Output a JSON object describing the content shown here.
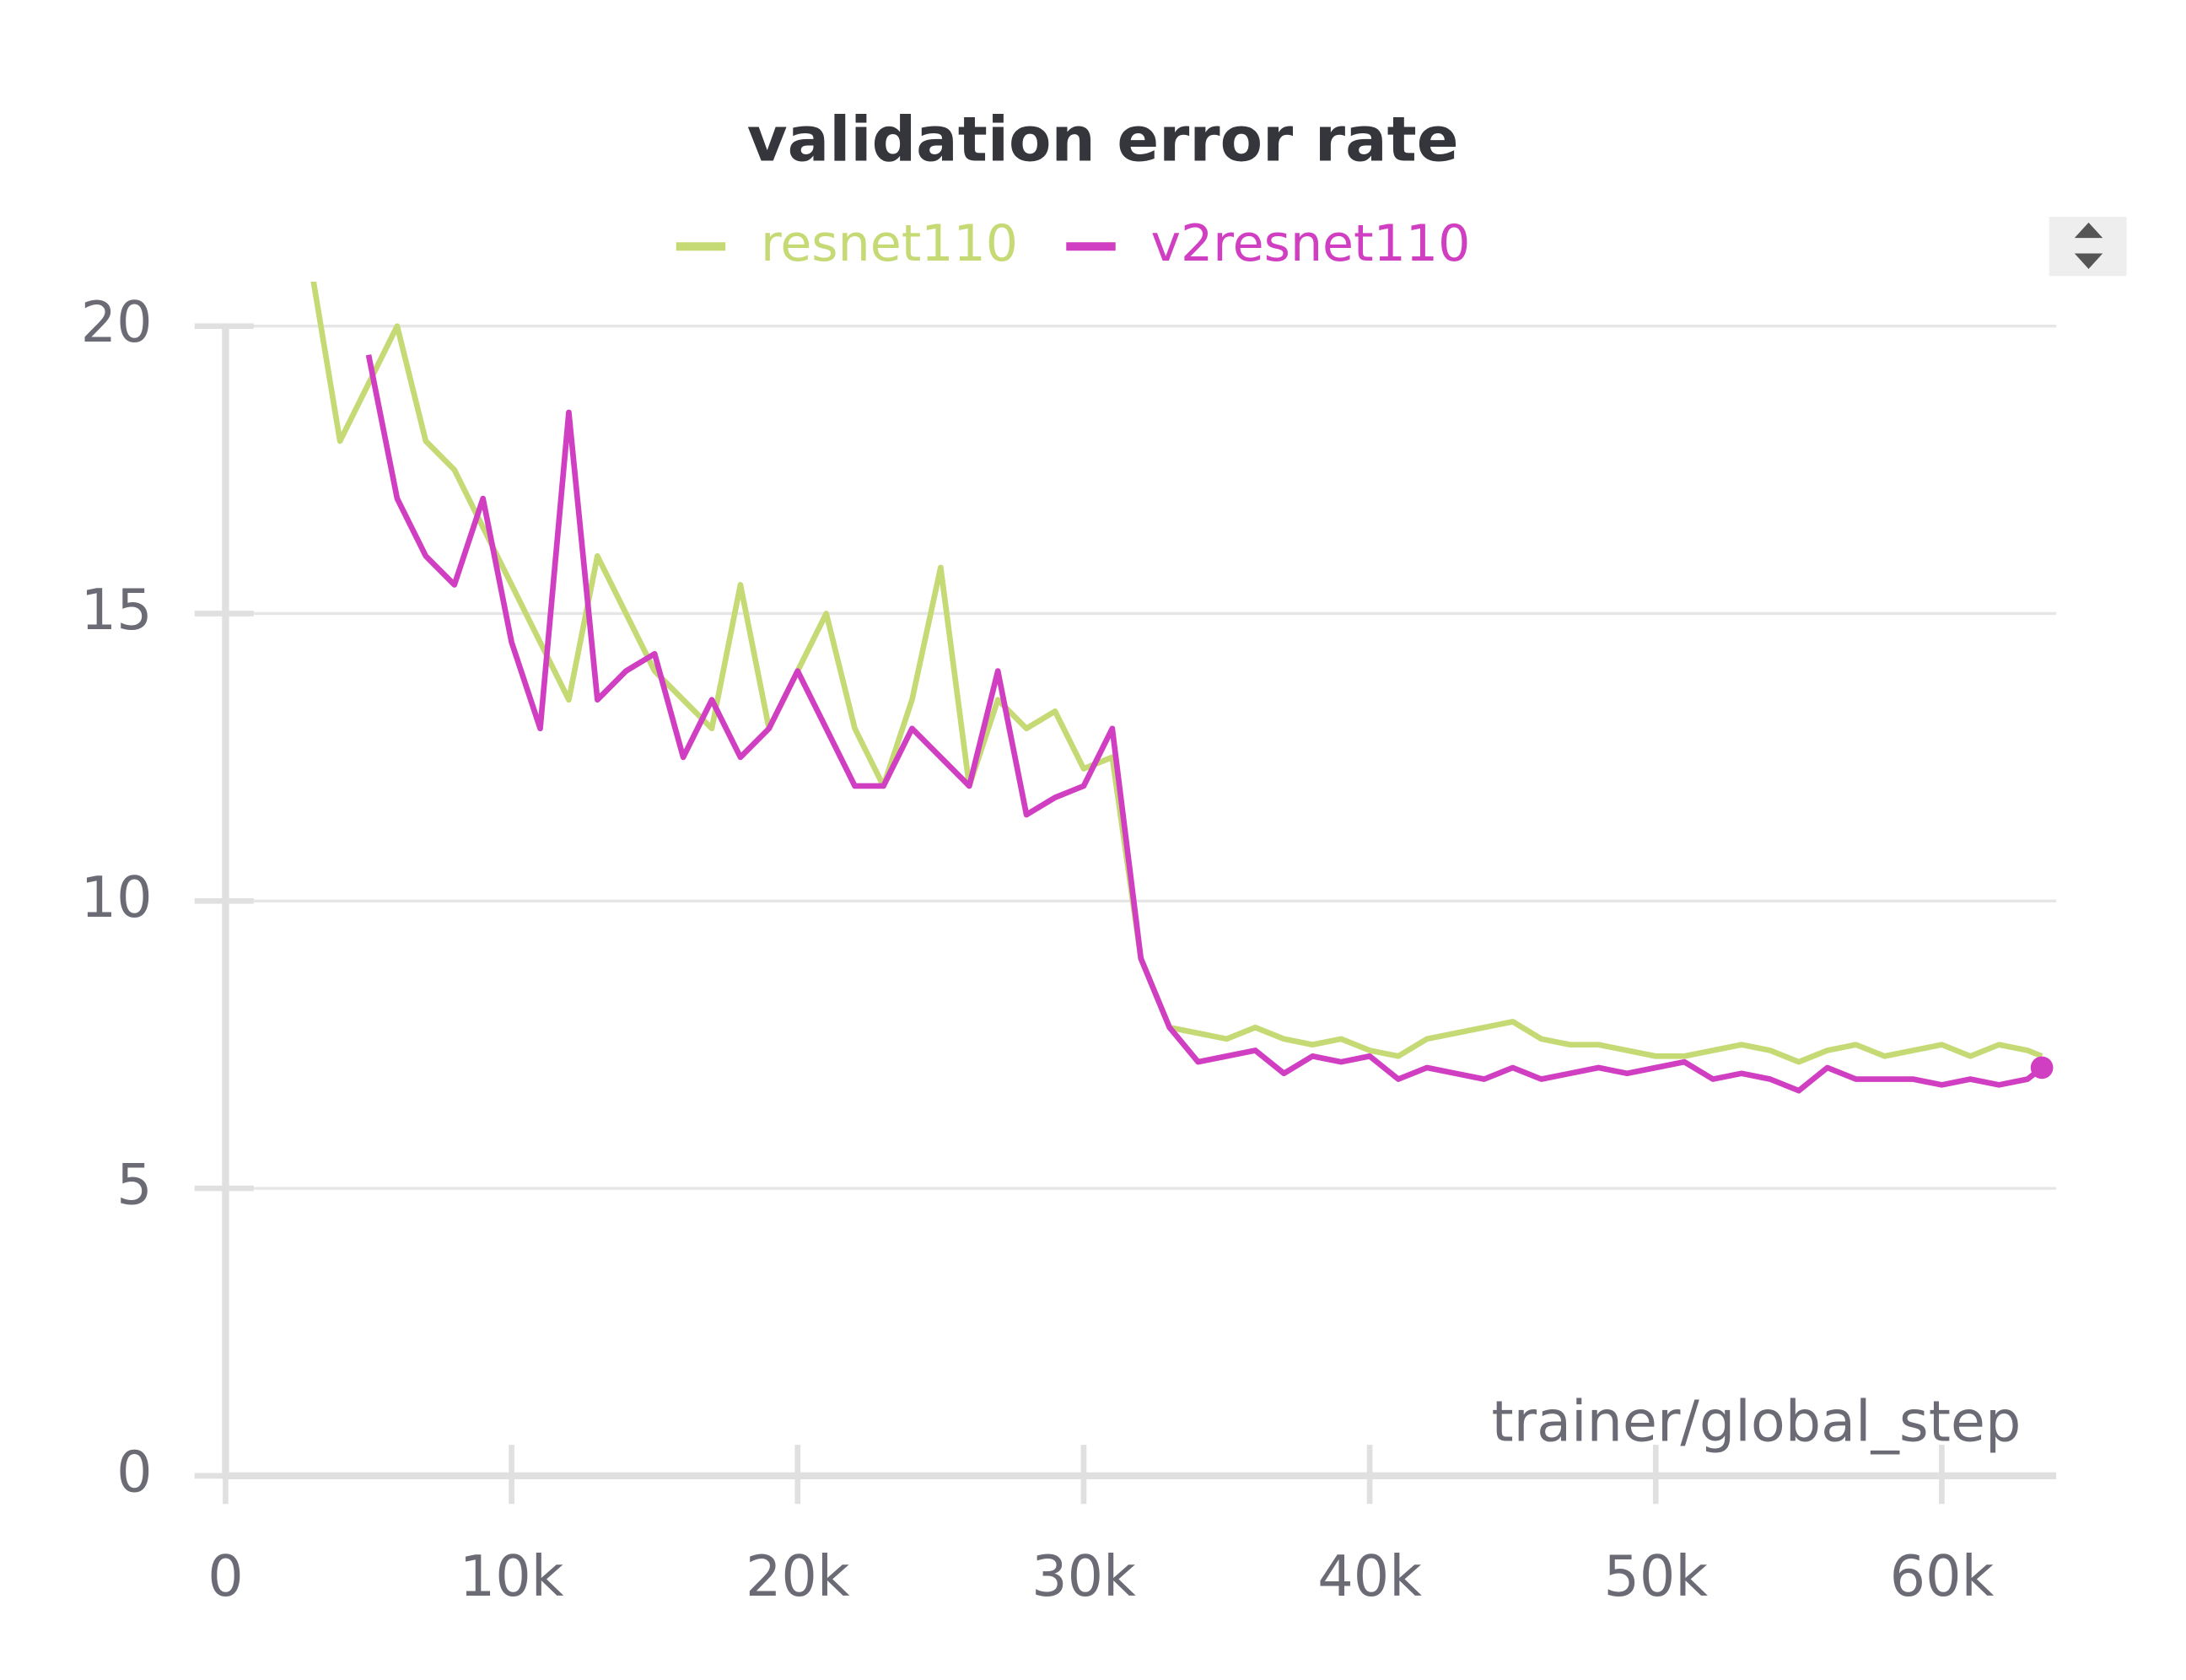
{
  "chart_data": {
    "type": "line",
    "title": "validation error rate",
    "x_label": "trainer/global_step",
    "x": [
      3000,
      4000,
      5000,
      6000,
      7000,
      8000,
      9000,
      10000,
      11000,
      12000,
      13000,
      14000,
      15000,
      16000,
      17000,
      18000,
      19000,
      20000,
      21000,
      22000,
      23000,
      24000,
      25000,
      26000,
      27000,
      28000,
      29000,
      30000,
      31000,
      32000,
      33000,
      34000,
      35000,
      36000,
      37000,
      38000,
      39000,
      40000,
      41000,
      42000,
      43000,
      44000,
      45000,
      46000,
      47000,
      48000,
      49000,
      50000,
      51000,
      52000,
      53000,
      54000,
      55000,
      56000,
      57000,
      58000,
      59000,
      60000,
      61000,
      62000,
      63000,
      63500
    ],
    "series": [
      {
        "name": "resnet110",
        "color": "#c5da74",
        "values": [
          21,
          18,
          19,
          20,
          18,
          17.5,
          16.5,
          15.5,
          14.5,
          13.5,
          16,
          15,
          14,
          13.5,
          13,
          15.5,
          13,
          14,
          15,
          13,
          12,
          13.5,
          15.8,
          12,
          13.5,
          13,
          13.3,
          12.3,
          12.5,
          9,
          7.8,
          7.7,
          7.6,
          7.8,
          7.6,
          7.5,
          7.6,
          7.4,
          7.3,
          7.6,
          7.7,
          7.8,
          7.9,
          7.6,
          7.5,
          7.5,
          7.4,
          7.3,
          7.3,
          7.4,
          7.5,
          7.4,
          7.2,
          7.4,
          7.5,
          7.3,
          7.4,
          7.5,
          7.3,
          7.5,
          7.4,
          7.3
        ]
      },
      {
        "name": "v2resnet110",
        "color": "#d03fc1",
        "values": [
          null,
          null,
          19.5,
          17,
          16,
          15.5,
          17,
          14.5,
          13,
          18.5,
          13.5,
          14,
          14.3,
          12.5,
          13.5,
          12.5,
          13,
          14,
          13,
          12,
          12,
          13,
          12.5,
          12,
          14,
          11.5,
          11.8,
          12,
          13,
          9,
          7.8,
          7.2,
          7.3,
          7.4,
          7,
          7.3,
          7.2,
          7.3,
          6.9,
          7.1,
          7,
          6.9,
          7.1,
          6.9,
          7,
          7.1,
          7,
          7.1,
          7.2,
          6.9,
          7,
          6.9,
          6.7,
          7.1,
          6.9,
          6.9,
          6.9,
          6.8,
          6.9,
          6.8,
          6.9,
          7.1
        ]
      }
    ],
    "xlim": [
      0,
      64000
    ],
    "xticks": [
      0,
      {
        "value": 10000,
        "label": "10k"
      },
      {
        "value": 20000,
        "label": "20k"
      },
      {
        "value": 30000,
        "label": "30k"
      },
      {
        "value": 40000,
        "label": "40k"
      },
      {
        "value": 50000,
        "label": "50k"
      },
      {
        "value": 60000,
        "label": "60k"
      }
    ],
    "ylim": [
      0,
      20.7
    ],
    "yticks": [
      0,
      5,
      10,
      15,
      20
    ],
    "grid": true
  }
}
